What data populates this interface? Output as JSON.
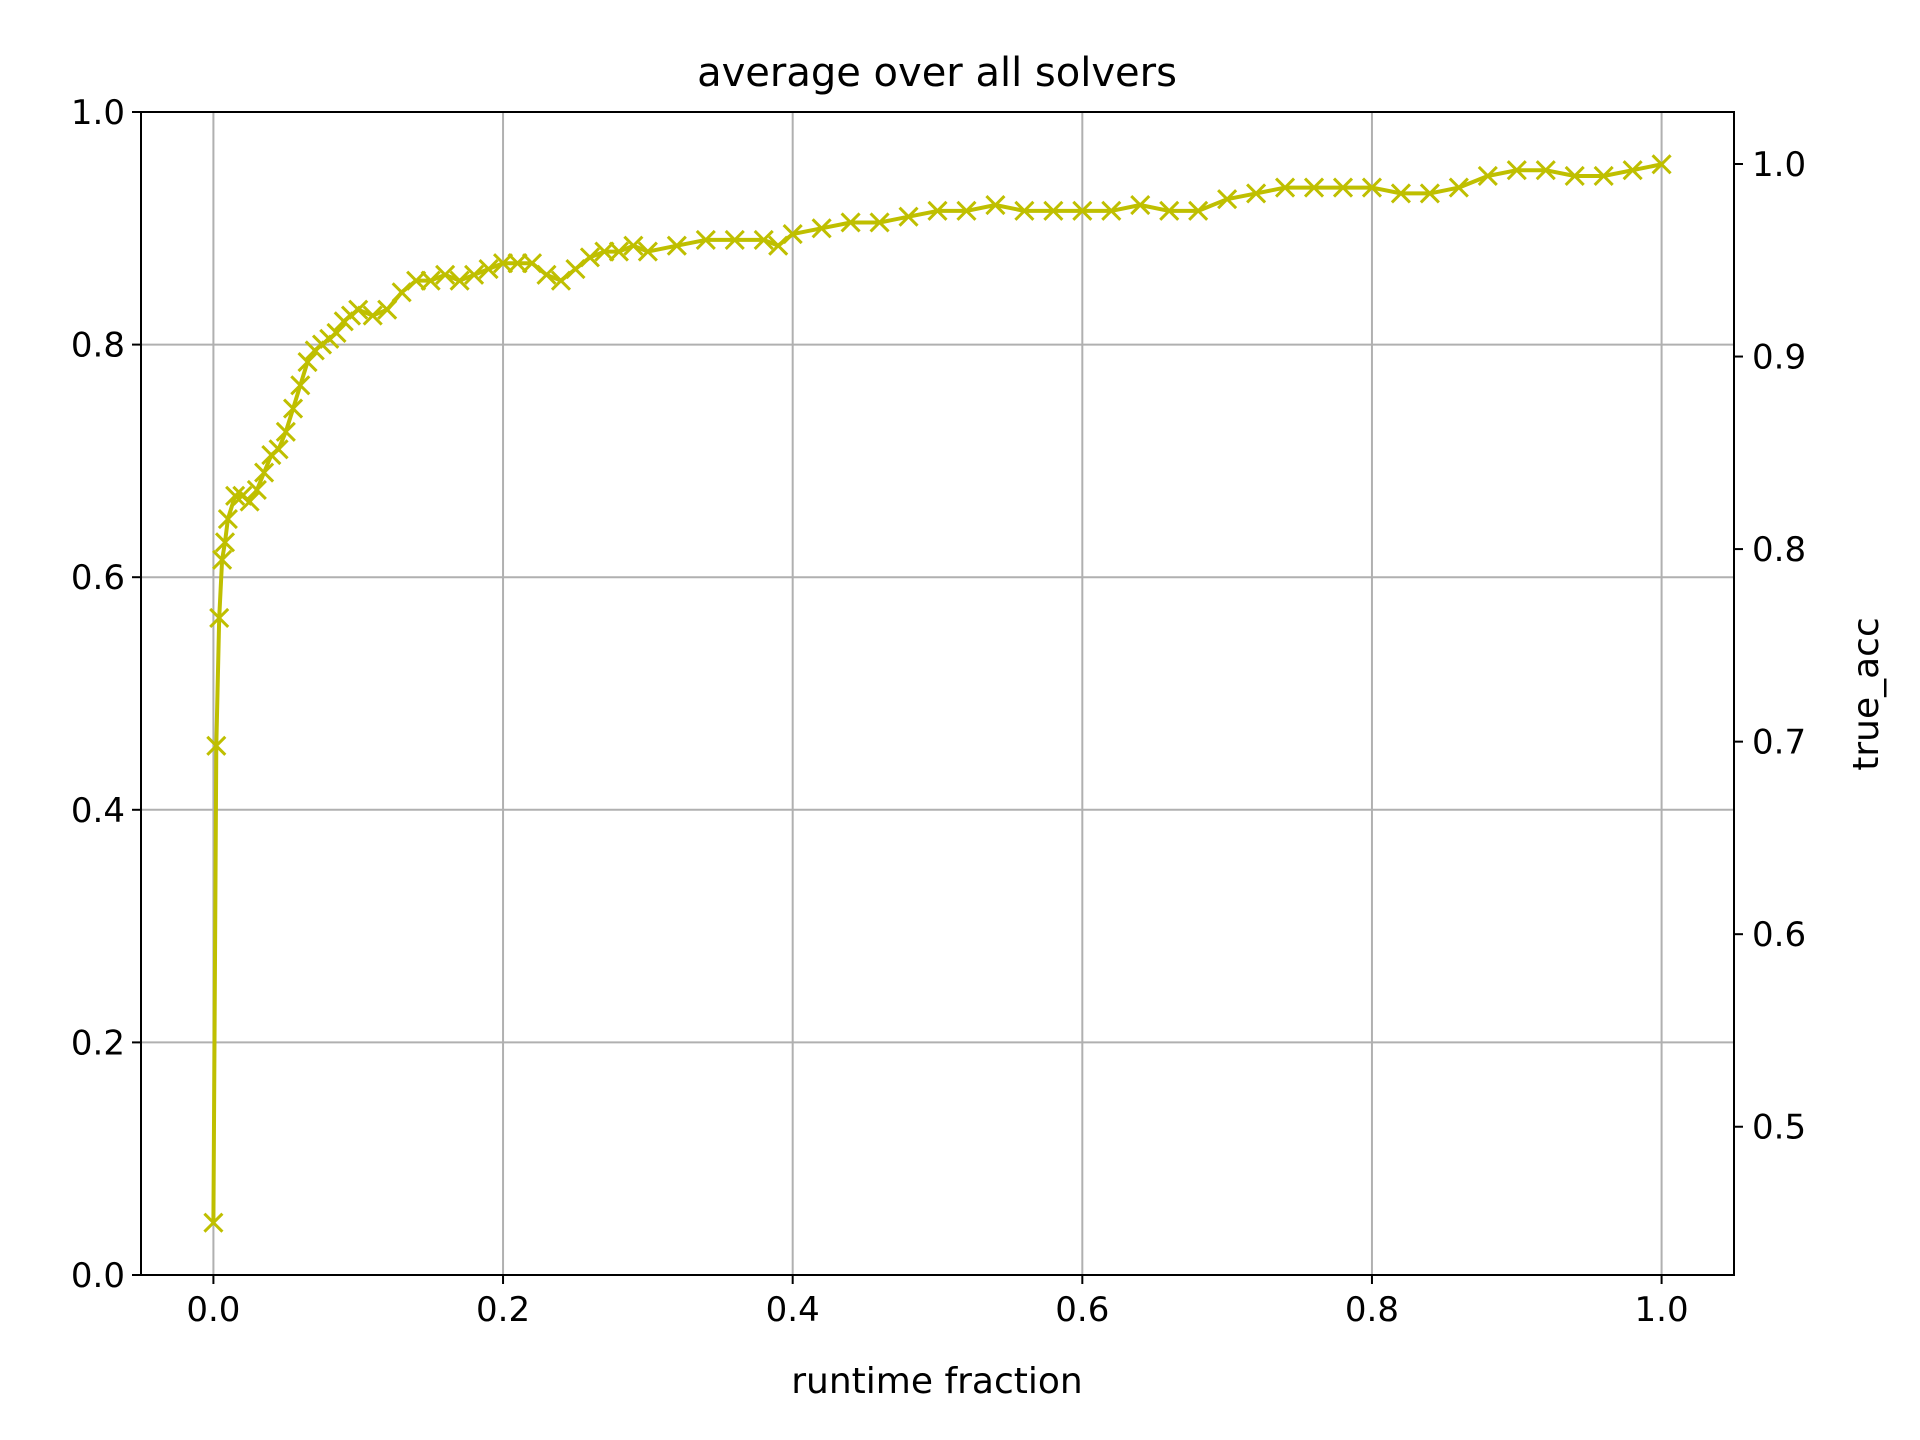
{
  "chart_data": {
    "type": "line",
    "title": "average over all solvers",
    "xlabel": "runtime fraction",
    "ylabel": "",
    "ylabel_right": "true_acc",
    "ylabel_right_color": "#ff0000",
    "series_color": "#bfbf00",
    "grid_color": "#b0b0b0",
    "marker": "x",
    "grid": true,
    "xlim": [
      -0.05,
      1.05
    ],
    "ylim": [
      0.0,
      1.0
    ],
    "ylim_right": [
      0.423,
      1.027
    ],
    "xticks": [
      0.0,
      0.2,
      0.4,
      0.6,
      0.8,
      1.0
    ],
    "xtick_labels": [
      "0.0",
      "0.2",
      "0.4",
      "0.6",
      "0.8",
      "1.0"
    ],
    "yticks": [
      0.0,
      0.2,
      0.4,
      0.6,
      0.8,
      1.0
    ],
    "ytick_labels": [
      "0.0",
      "0.2",
      "0.4",
      "0.6",
      "0.8",
      "1.0"
    ],
    "yticks_right": [
      0.5,
      0.6,
      0.7,
      0.8,
      0.9,
      1.0
    ],
    "ytick_right_labels": [
      "0.5",
      "0.6",
      "0.7",
      "0.8",
      "0.9",
      "1.0"
    ],
    "series": [
      {
        "x": [
          0.0,
          0.002,
          0.004,
          0.006,
          0.008,
          0.01,
          0.015,
          0.02,
          0.025,
          0.03,
          0.035,
          0.04,
          0.045,
          0.05,
          0.055,
          0.06,
          0.065,
          0.07,
          0.075,
          0.08,
          0.085,
          0.09,
          0.095,
          0.1,
          0.11,
          0.12,
          0.13,
          0.14,
          0.15,
          0.16,
          0.17,
          0.18,
          0.19,
          0.2,
          0.21,
          0.22,
          0.23,
          0.24,
          0.25,
          0.26,
          0.27,
          0.28,
          0.29,
          0.3,
          0.32,
          0.34,
          0.36,
          0.38,
          0.39,
          0.4,
          0.42,
          0.44,
          0.46,
          0.48,
          0.5,
          0.52,
          0.54,
          0.56,
          0.58,
          0.6,
          0.62,
          0.64,
          0.66,
          0.68,
          0.7,
          0.72,
          0.74,
          0.76,
          0.78,
          0.8,
          0.82,
          0.84,
          0.86,
          0.88,
          0.9,
          0.92,
          0.94,
          0.96,
          0.98,
          1.0
        ],
        "y": [
          0.045,
          0.455,
          0.565,
          0.615,
          0.63,
          0.65,
          0.67,
          0.67,
          0.665,
          0.675,
          0.69,
          0.705,
          0.71,
          0.725,
          0.745,
          0.765,
          0.785,
          0.795,
          0.8,
          0.805,
          0.81,
          0.82,
          0.825,
          0.83,
          0.825,
          0.83,
          0.845,
          0.855,
          0.855,
          0.86,
          0.855,
          0.86,
          0.865,
          0.87,
          0.87,
          0.87,
          0.86,
          0.855,
          0.865,
          0.875,
          0.88,
          0.88,
          0.885,
          0.88,
          0.885,
          0.89,
          0.89,
          0.89,
          0.885,
          0.895,
          0.9,
          0.905,
          0.905,
          0.91,
          0.915,
          0.915,
          0.92,
          0.915,
          0.915,
          0.915,
          0.915,
          0.92,
          0.915,
          0.915,
          0.925,
          0.93,
          0.935,
          0.935,
          0.935,
          0.935,
          0.93,
          0.93,
          0.935,
          0.945,
          0.95,
          0.95,
          0.945,
          0.945,
          0.95,
          0.955
        ]
      }
    ]
  }
}
